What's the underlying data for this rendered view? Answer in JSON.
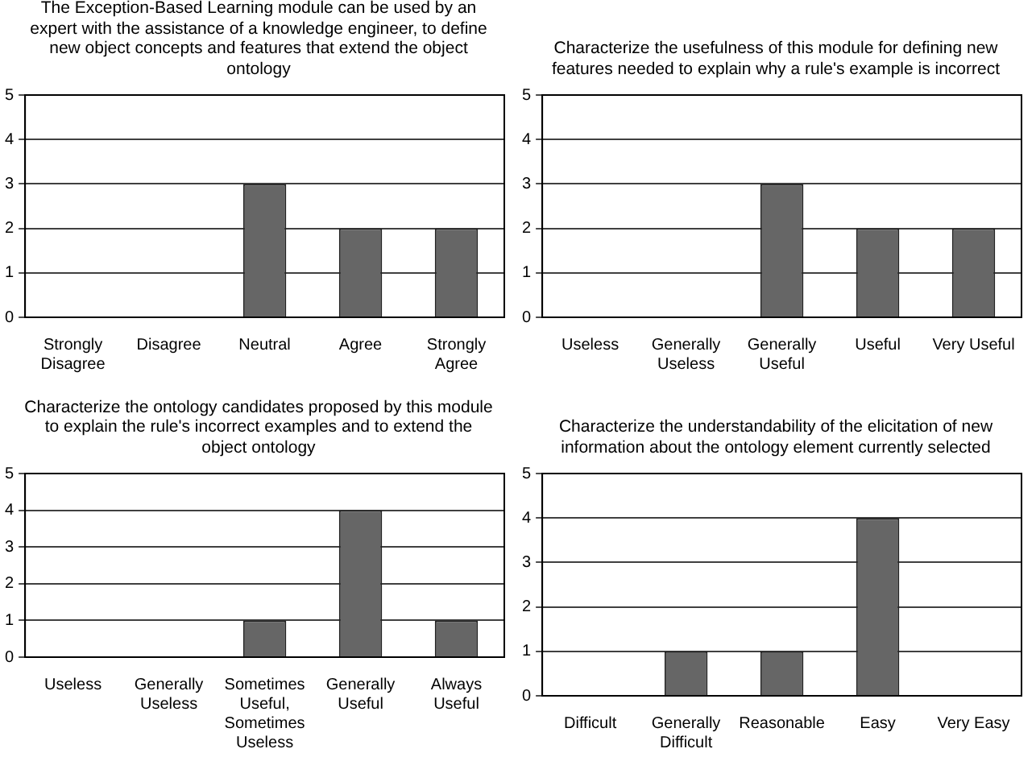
{
  "chart_data": [
    {
      "type": "bar",
      "title": "The Exception-Based Learning module can be used by an expert with the assistance of a knowledge engineer, to define new object concepts and features that extend the object ontology",
      "categories": [
        "Strongly Disagree",
        "Disagree",
        "Neutral",
        "Agree",
        "Strongly Agree"
      ],
      "values": [
        0,
        0,
        3,
        2,
        2
      ],
      "color": "#666666",
      "ylim": [
        0,
        5
      ],
      "yticks": [
        0,
        1,
        2,
        3,
        4,
        5
      ],
      "grid": "y",
      "legend": false
    },
    {
      "type": "bar",
      "title": "Characterize the usefulness of this module for defining new features needed to explain why a rule's example is incorrect",
      "categories": [
        "Useless",
        "Generally Useless",
        "Generally Useful",
        "Useful",
        "Very Useful"
      ],
      "values": [
        0,
        0,
        3,
        2,
        2
      ],
      "color": "#666666",
      "ylim": [
        0,
        5
      ],
      "yticks": [
        0,
        1,
        2,
        3,
        4,
        5
      ],
      "grid": "y",
      "legend": false
    },
    {
      "type": "bar",
      "title": "Characterize the ontology candidates proposed by this module to explain the rule's incorrect examples and to extend the object ontology",
      "categories": [
        "Useless",
        "Generally Useless",
        "Sometimes Useful, Sometimes Useless",
        "Generally Useful",
        "Always Useful"
      ],
      "values": [
        0,
        0,
        1,
        4,
        1
      ],
      "color": "#666666",
      "ylim": [
        0,
        5
      ],
      "yticks": [
        0,
        1,
        2,
        3,
        4,
        5
      ],
      "grid": "y",
      "legend": false
    },
    {
      "type": "bar",
      "title": "Characterize the understandability of the elicitation of new information about the ontology element currently selected",
      "categories": [
        "Difficult",
        "Generally Difficult",
        "Reasonable",
        "Easy",
        "Very Easy"
      ],
      "values": [
        0,
        1,
        1,
        4,
        0
      ],
      "color": "#666666",
      "ylim": [
        0,
        5
      ],
      "yticks": [
        0,
        1,
        2,
        3,
        4,
        5
      ],
      "grid": "y",
      "legend": false
    }
  ]
}
